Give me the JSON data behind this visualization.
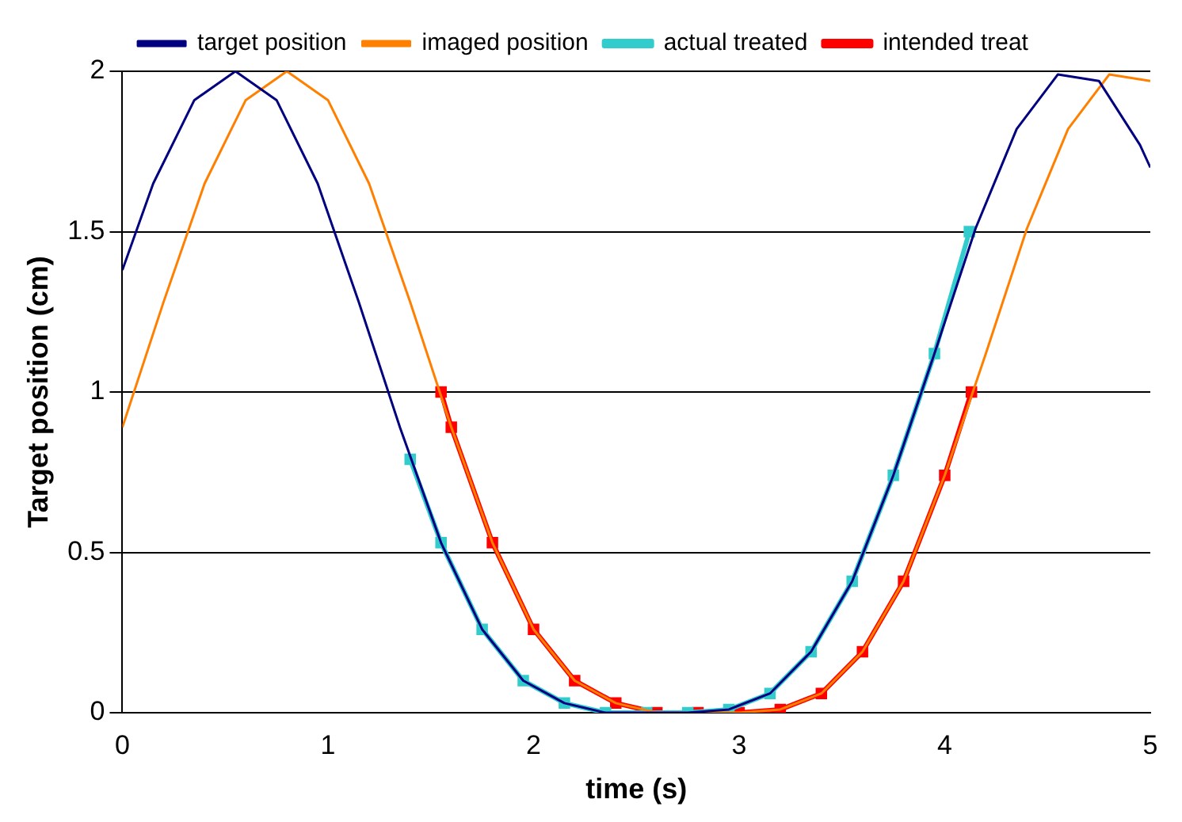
{
  "chart_data": {
    "type": "line",
    "xlabel": "time (s)",
    "ylabel": "Target position (cm)",
    "xlim": [
      0,
      5
    ],
    "xticks": [
      0,
      1,
      2,
      3,
      4,
      5
    ],
    "ylim": [
      0,
      2
    ],
    "yticks": [
      0,
      0.5,
      1,
      1.5,
      2
    ],
    "grid": "y",
    "legend": "top",
    "marker": "none",
    "line_style": "solid",
    "series": [
      {
        "name": "target position",
        "color": "#000080",
        "x": [
          0,
          0.15,
          0.35,
          0.55,
          0.75,
          0.95,
          1.15,
          1.35,
          1.55,
          1.75,
          1.95,
          2.15,
          2.35,
          2.55,
          2.75,
          2.95,
          3.15,
          3.35,
          3.55,
          3.75,
          3.95,
          4.15,
          4.35,
          4.55,
          4.75,
          4.95,
          5
        ],
        "values": [
          1.38,
          1.65,
          1.91,
          2,
          1.91,
          1.65,
          1.28,
          0.89,
          0.53,
          0.26,
          0.1,
          0.03,
          0,
          0,
          0,
          0.01,
          0.06,
          0.19,
          0.41,
          0.74,
          1.12,
          1.51,
          1.82,
          1.99,
          1.97,
          1.77,
          1.7
        ]
      },
      {
        "name": "imaged position",
        "color": "#ff8000",
        "x": [
          0,
          0.2,
          0.4,
          0.6,
          0.8,
          1,
          1.2,
          1.4,
          1.6,
          1.8,
          2,
          2.2,
          2.4,
          2.6,
          2.8,
          3,
          3.2,
          3.4,
          3.6,
          3.8,
          4,
          4.2,
          4.4,
          4.6,
          4.8,
          5
        ],
        "values": [
          0.89,
          1.28,
          1.65,
          1.91,
          2,
          1.91,
          1.65,
          1.28,
          0.89,
          0.53,
          0.26,
          0.1,
          0.03,
          0,
          0,
          0,
          0.01,
          0.06,
          0.19,
          0.41,
          0.74,
          1.12,
          1.51,
          1.82,
          1.99,
          1.97
        ]
      },
      {
        "name": "actual treated",
        "color": "#33cccc",
        "marker": "square",
        "x": [
          1.4,
          1.55,
          1.75,
          1.95,
          2.15,
          2.35,
          2.55,
          2.75,
          2.95,
          3.15,
          3.35,
          3.55,
          3.75,
          3.95,
          4.12
        ],
        "values": [
          0.79,
          0.53,
          0.26,
          0.1,
          0.03,
          0,
          0,
          0,
          0.01,
          0.06,
          0.19,
          0.41,
          0.74,
          1.12,
          1.5
        ]
      },
      {
        "name": "intended treat",
        "color": "#ff0000",
        "marker": "square",
        "x": [
          1.55,
          1.6,
          1.8,
          2,
          2.2,
          2.4,
          2.6,
          2.8,
          3,
          3.2,
          3.4,
          3.6,
          3.8,
          4,
          4.13
        ],
        "values": [
          1,
          0.89,
          0.53,
          0.26,
          0.1,
          0.03,
          0,
          0,
          0,
          0.01,
          0.06,
          0.19,
          0.41,
          0.74,
          1
        ]
      }
    ]
  }
}
